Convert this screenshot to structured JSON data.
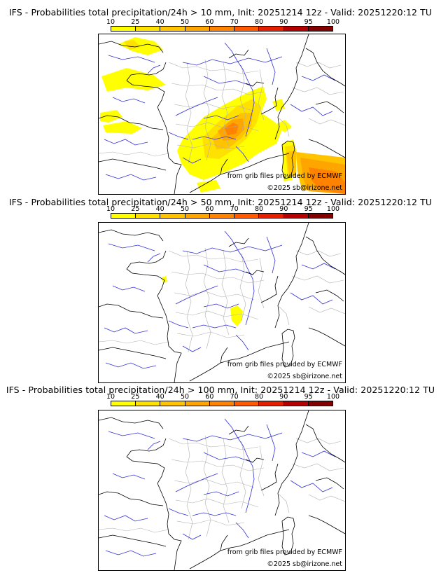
{
  "legend": {
    "ticks": [
      "10",
      "25",
      "40",
      "50",
      "60",
      "70",
      "80",
      "90",
      "95",
      "100"
    ],
    "colors": [
      "#ffff00",
      "#ffe100",
      "#ffc300",
      "#ffa500",
      "#ff8200",
      "#ff5a00",
      "#e61e00",
      "#b40000",
      "#820000",
      "#500000"
    ]
  },
  "panels": [
    {
      "title": "IFS - Probabilities total precipitation/24h > 10 mm, Init: 20251214 12z - Valid: 20251220:12 TU",
      "credit_source": "from grib files provided by ECMWF",
      "credit_copy": "©2025 sb@irizone.net"
    },
    {
      "title": "IFS - Probabilities total precipitation/24h > 50 mm, Init: 20251214 12z - Valid: 20251220:12 TU",
      "credit_source": "from grib files provided by ECMWF",
      "credit_copy": "©2025 sb@irizone.net"
    },
    {
      "title": "IFS - Probabilities total precipitation/24h > 100 mm, Init: 20251214 12z - Valid: 20251220:12 TU",
      "credit_source": "from grib files provided by ECMWF",
      "credit_copy": "©2025 sb@irizone.net"
    }
  ]
}
